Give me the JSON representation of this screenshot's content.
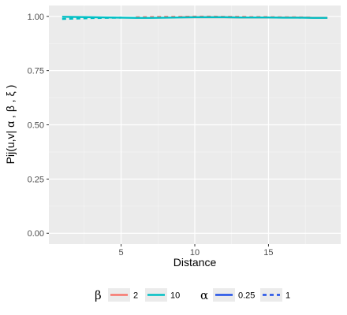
{
  "chart_data": {
    "type": "line",
    "xlabel": "Distance",
    "ylabel": "Pij(u,v| α , β , ξ )",
    "xlim": [
      0.1,
      19.9
    ],
    "ylim": [
      -0.05,
      1.05
    ],
    "x_ticks": [
      5,
      10,
      15
    ],
    "y_ticks": [
      0.0,
      0.25,
      0.5,
      0.75,
      1.0
    ],
    "y_tick_labels": [
      "0.00",
      "0.25",
      "0.50",
      "0.75",
      "1.00"
    ],
    "grid": true,
    "legend_position": "bottom",
    "legend": {
      "beta_title": "β",
      "beta_items": [
        {
          "label": "2",
          "color": "#F8766D"
        },
        {
          "label": "10",
          "color": "#00BFC4"
        }
      ],
      "alpha_title": "α",
      "alpha_items": [
        {
          "label": "0.25",
          "linetype": "solid",
          "color": "#1F4FE8"
        },
        {
          "label": "1",
          "linetype": "dashed",
          "color": "#1F4FE8"
        }
      ]
    },
    "series": [
      {
        "beta": "2",
        "alpha": "1",
        "color": "#F8766D",
        "linetype": "dashed",
        "x": [
          6,
          7,
          8,
          9,
          10,
          11,
          12,
          13,
          14,
          15,
          16,
          17,
          18
        ],
        "y": [
          0.996,
          0.997,
          0.998,
          0.998,
          0.999,
          0.999,
          0.998,
          0.998,
          0.997,
          0.997,
          0.996,
          0.996,
          0.995
        ]
      },
      {
        "beta": "2",
        "alpha": "0.25",
        "color": "#F8766D",
        "linetype": "solid",
        "x": [
          9,
          10,
          11,
          12,
          13,
          14,
          15,
          16,
          17,
          18,
          19
        ],
        "y": [
          0.996,
          0.996,
          0.996,
          0.996,
          0.995,
          0.995,
          0.995,
          0.995,
          0.995,
          0.994,
          0.994
        ]
      },
      {
        "beta": "10",
        "alpha": "0.25",
        "color": "#00BFC4",
        "linetype": "solid",
        "x": [
          1,
          2,
          3,
          4,
          5,
          6,
          7,
          8,
          9,
          10,
          11,
          12,
          13,
          14,
          15,
          16,
          17,
          18,
          19
        ],
        "y": [
          0.998,
          0.997,
          0.996,
          0.995,
          0.994,
          0.993,
          0.993,
          0.994,
          0.995,
          0.996,
          0.996,
          0.996,
          0.995,
          0.995,
          0.995,
          0.994,
          0.994,
          0.993,
          0.993
        ]
      },
      {
        "beta": "10",
        "alpha": "1",
        "color": "#00BFC4",
        "linetype": "dashed",
        "x": [
          1,
          2,
          3,
          4,
          5
        ],
        "y": [
          0.988,
          0.99,
          0.992,
          0.993,
          0.994
        ]
      }
    ]
  }
}
